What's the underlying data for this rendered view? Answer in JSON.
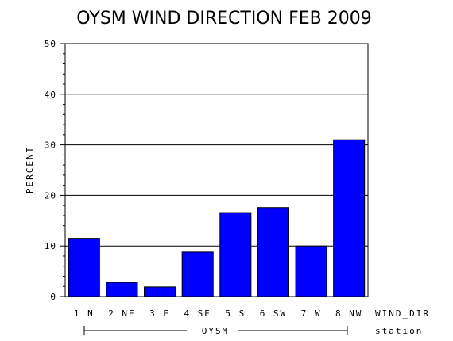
{
  "chart_data": {
    "type": "bar",
    "title": "OYSM WIND DIRECTION FEB 2009",
    "ylabel": "PERCENT",
    "xlabel": "WIND_DIR",
    "group_axis_label": "station",
    "group_name": "OYSM",
    "categories": [
      "1 N",
      "2 NE",
      "3 E",
      "4 SE",
      "5 S",
      "6 SW",
      "7 W",
      "8 NW"
    ],
    "values": [
      11.5,
      2.8,
      1.9,
      8.8,
      16.6,
      17.6,
      10.0,
      31.0
    ],
    "ylim": [
      0,
      50
    ],
    "yticks": [
      "0",
      "10",
      "20",
      "30",
      "40",
      "50"
    ],
    "grid": true,
    "bar_color": "#0000ff"
  }
}
